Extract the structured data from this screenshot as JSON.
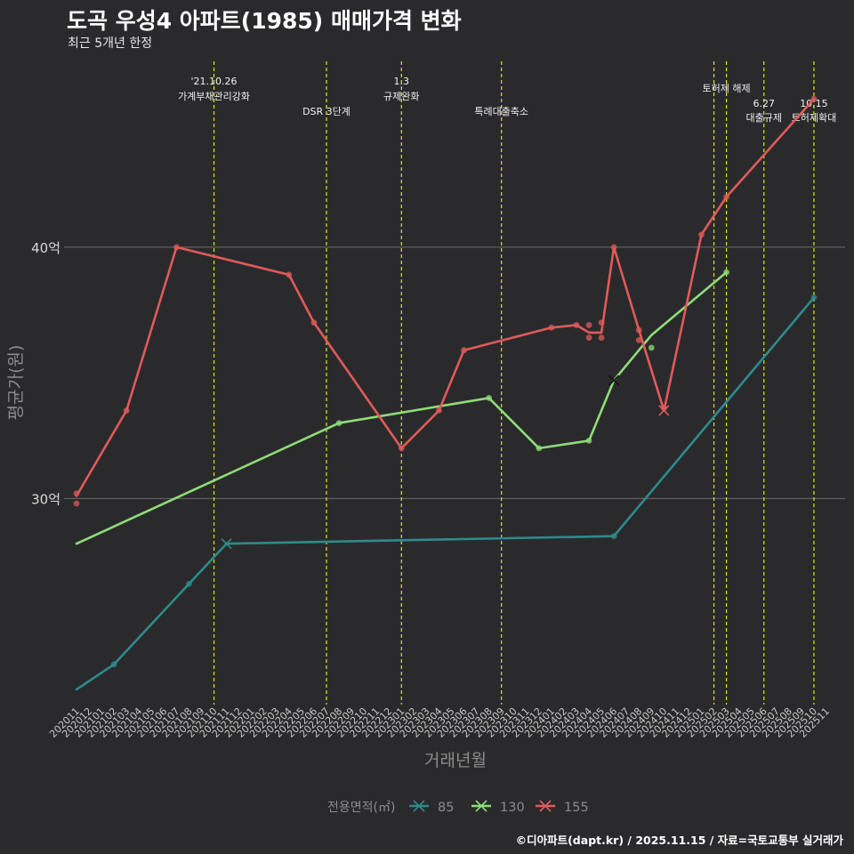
{
  "title": "도곡 우성4 아파트(1985) 매매가격 변화",
  "subtitle": "최근 5개년 한정",
  "caption": "©디아파트(dapt.kr) / 2025.11.15 / 자료=국토교통부 실거래가",
  "colors": {
    "background": "#2a2a2c",
    "grid": "#6e6e6e",
    "event_line": "#d7e51e",
    "s85": "#2d8b8c",
    "s130": "#8fdc78",
    "s155": "#e05a5a"
  },
  "chart_data": {
    "type": "line",
    "title": "도곡 우성4 아파트(1985) 매매가격 변화",
    "xlabel": "거래년월",
    "ylabel": "평균가(원)",
    "ylim": [
      21.8,
      47.5
    ],
    "y_ticks": [
      {
        "value": 30,
        "label": "30억"
      },
      {
        "value": 40,
        "label": "40억"
      }
    ],
    "categories": [
      "202011",
      "202012",
      "202101",
      "202102",
      "202103",
      "202104",
      "202105",
      "202106",
      "202107",
      "202108",
      "202109",
      "202110",
      "202111",
      "202112",
      "202201",
      "202202",
      "202203",
      "202204",
      "202205",
      "202206",
      "202207",
      "202208",
      "202209",
      "202210",
      "202211",
      "202212",
      "202301",
      "202302",
      "202303",
      "202304",
      "202305",
      "202306",
      "202307",
      "202308",
      "202309",
      "202310",
      "202311",
      "202312",
      "202401",
      "202402",
      "202403",
      "202404",
      "202405",
      "202406",
      "202407",
      "202408",
      "202409",
      "202410",
      "202411",
      "202412",
      "202501",
      "202502",
      "202503",
      "202504",
      "202505",
      "202506",
      "202507",
      "202508",
      "202509",
      "202510",
      "202511"
    ],
    "legend_title": "전용면적(㎡)",
    "series": [
      {
        "name": "85",
        "line": [
          [
            0,
            22.4
          ],
          [
            3,
            23.4
          ],
          [
            9,
            26.6
          ],
          [
            12,
            28.2
          ],
          [
            43,
            28.5
          ],
          [
            59,
            38.0
          ]
        ],
        "points": [
          [
            3,
            23.4
          ],
          [
            9,
            26.6
          ],
          [
            43,
            28.5
          ],
          [
            59,
            38.0
          ]
        ],
        "crosses": [
          [
            12,
            28.2
          ]
        ]
      },
      {
        "name": "130",
        "line": [
          [
            0,
            28.2
          ],
          [
            21,
            33.0
          ],
          [
            33,
            34.0
          ],
          [
            37,
            32.0
          ],
          [
            41,
            32.3
          ],
          [
            43,
            34.7
          ],
          [
            46,
            36.5
          ],
          [
            52,
            39.0
          ]
        ],
        "points": [
          [
            21,
            33.0
          ],
          [
            33,
            34.0
          ],
          [
            37,
            32.0
          ],
          [
            41,
            32.3
          ],
          [
            46,
            36.0
          ],
          [
            52,
            39.0
          ]
        ],
        "crosses": [
          [
            43,
            34.7
          ]
        ]
      },
      {
        "name": "155",
        "line": [
          [
            0,
            30.1
          ],
          [
            4,
            33.5
          ],
          [
            8,
            40.0
          ],
          [
            17,
            38.9
          ],
          [
            19,
            37.0
          ],
          [
            26,
            32.0
          ],
          [
            29,
            33.5
          ],
          [
            31,
            35.9
          ],
          [
            38,
            36.8
          ],
          [
            40,
            36.9
          ],
          [
            41,
            36.6
          ],
          [
            42,
            36.6
          ],
          [
            43,
            40.0
          ],
          [
            45,
            36.7
          ],
          [
            47,
            33.5
          ],
          [
            50,
            40.5
          ],
          [
            52,
            42.0
          ],
          [
            59,
            45.9
          ]
        ],
        "points": [
          [
            0,
            29.8
          ],
          [
            0,
            30.2
          ],
          [
            4,
            33.5
          ],
          [
            8,
            40.0
          ],
          [
            17,
            38.9
          ],
          [
            19,
            37.0
          ],
          [
            26,
            32.0
          ],
          [
            29,
            33.5
          ],
          [
            31,
            35.9
          ],
          [
            38,
            36.8
          ],
          [
            40,
            36.9
          ],
          [
            41,
            36.9
          ],
          [
            41,
            36.4
          ],
          [
            42,
            37.0
          ],
          [
            42,
            36.4
          ],
          [
            43,
            40.0
          ],
          [
            45,
            36.7
          ],
          [
            45,
            36.3
          ],
          [
            47,
            33.6
          ],
          [
            50,
            40.5
          ],
          [
            52,
            42.0
          ],
          [
            59,
            45.9
          ]
        ],
        "crosses": [
          [
            47,
            33.5
          ]
        ]
      }
    ],
    "events": [
      {
        "x": 11,
        "label_top": "'21.10.26",
        "label_bottom": "가계부채관리강화",
        "tier": 1
      },
      {
        "x": 20,
        "label_top": "",
        "label_bottom": "DSR 3단계",
        "tier": 2
      },
      {
        "x": 26,
        "label_top": "1.3",
        "label_bottom": "규제완화",
        "tier": 1
      },
      {
        "x": 34,
        "label_top": "",
        "label_bottom": "특례대출축소",
        "tier": 2
      },
      {
        "x": 51,
        "label_top": "",
        "label_bottom": "",
        "tier": 0
      },
      {
        "x": 52,
        "label_top": "",
        "label_bottom": "토허제 해제",
        "tier": 0
      },
      {
        "x": 55,
        "label_top": "6.27",
        "label_bottom": "대출규제",
        "tier": 3
      },
      {
        "x": 59,
        "label_top": "10.15",
        "label_bottom": "토허제확대",
        "tier": 3
      }
    ]
  }
}
